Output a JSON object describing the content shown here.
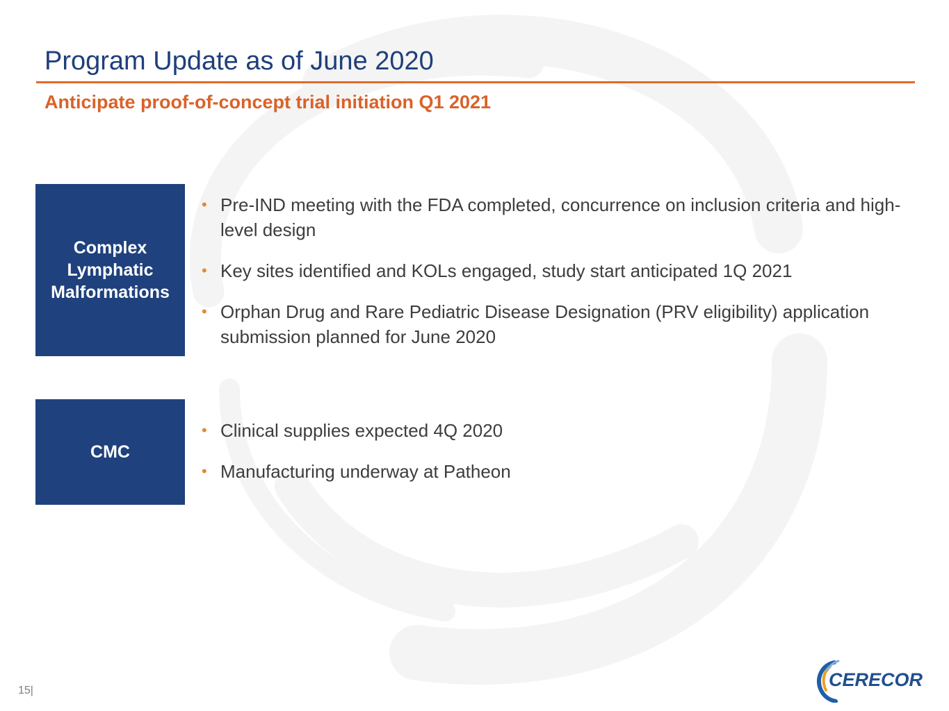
{
  "slide": {
    "title": "Program Update as of June 2020",
    "subtitle": "Anticipate proof-of-concept trial initiation Q1 2021",
    "page_number": "15|"
  },
  "sections": [
    {
      "label": "Complex\nLymphatic\nMalformations",
      "bullets": [
        "Pre-IND meeting with the FDA completed, concurrence on inclusion criteria and high-level design",
        "Key sites identified and KOLs engaged, study start anticipated 1Q 2021",
        "Orphan Drug and Rare Pediatric Disease Designation (PRV eligibility) application submission planned for June 2020"
      ]
    },
    {
      "label": "CMC",
      "bullets": [
        "Clinical supplies expected 4Q 2020",
        "Manufacturing underway at Patheon"
      ]
    }
  ],
  "logo": {
    "text": "CERECOR"
  },
  "colors": {
    "title": "#1f3f7a",
    "accent_orange": "#d9622a",
    "box_navy": "#1f417d",
    "bullet_dot": "#e28a2e",
    "body_text": "#3d3d3d"
  }
}
